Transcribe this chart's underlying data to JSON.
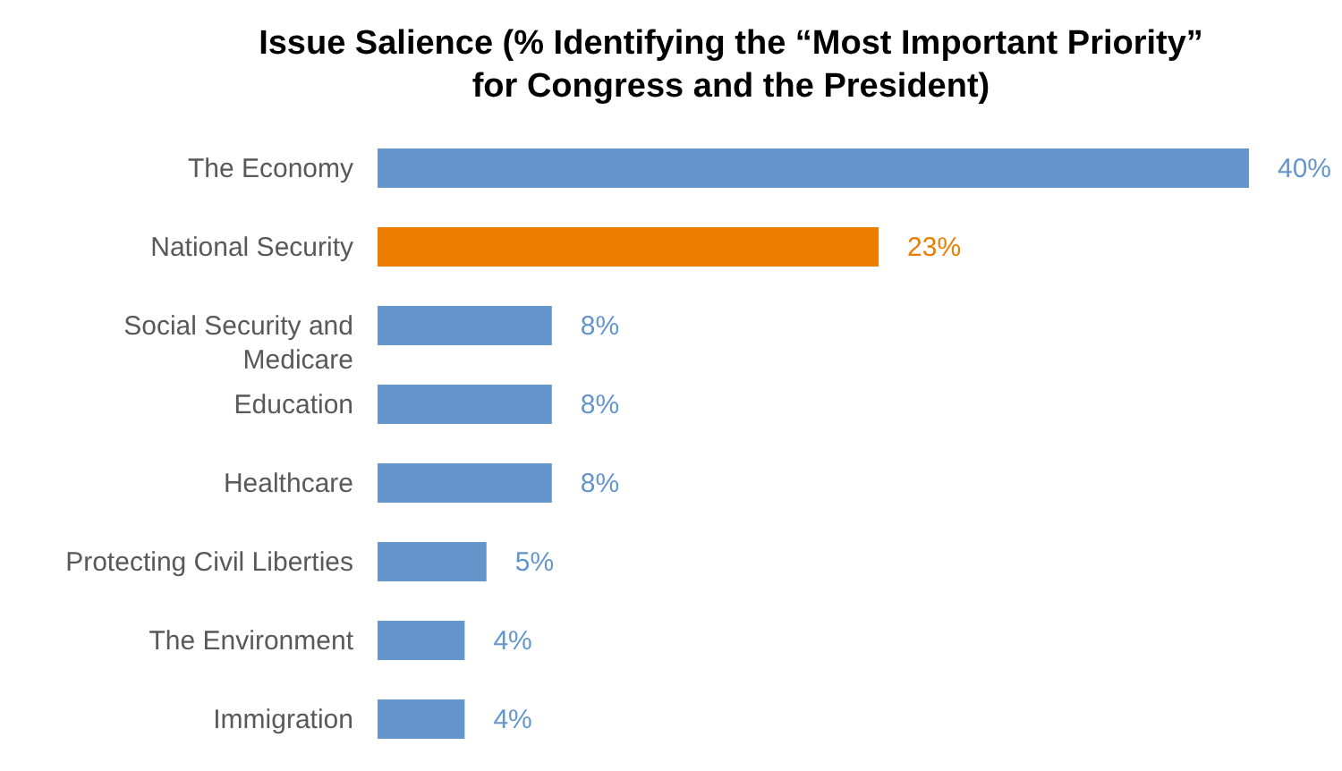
{
  "chart_data": {
    "type": "bar",
    "orientation": "horizontal",
    "title": "Issue Salience (% Identifying the “Most Important Priority” for Congress and the President)",
    "categories": [
      "The Economy",
      "National Security",
      "Social Security and Medicare",
      "Education",
      "Healthcare",
      "Protecting Civil Liberties",
      "The Environment",
      "Immigration"
    ],
    "values": [
      40,
      23,
      8,
      8,
      8,
      5,
      4,
      4
    ],
    "colors": [
      "#6596cb",
      "#ed7d00",
      "#6596cb",
      "#6596cb",
      "#6596cb",
      "#6596cb",
      "#6596cb",
      "#6596cb"
    ],
    "value_labels": [
      "40%",
      "23%",
      "8%",
      "8%",
      "8%",
      "5%",
      "4%",
      "4%"
    ]
  }
}
